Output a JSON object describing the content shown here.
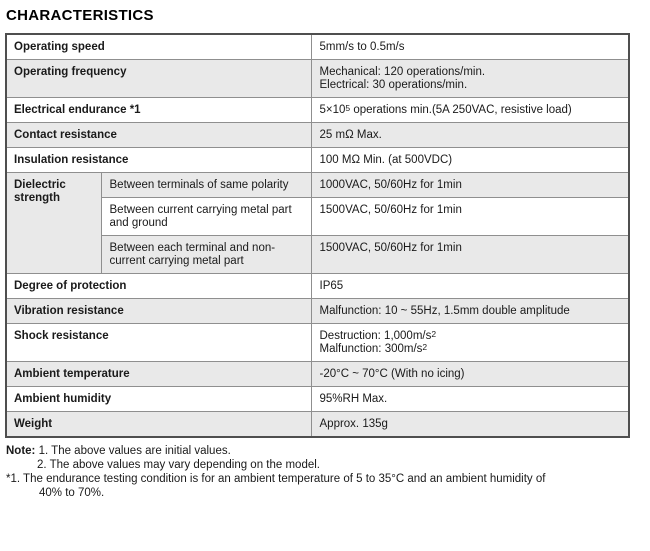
{
  "title": "CHARACTERISTICS",
  "colors": {
    "text": "#1a1a1a",
    "row_shade": "#e9e9e9",
    "border": "#8f8f8f",
    "outer_border": "#4f4f4f"
  },
  "table": {
    "rows": [
      {
        "label": "Operating speed",
        "shaded": false,
        "value": [
          {
            "t": "5mm/s to 0.5m/s"
          }
        ]
      },
      {
        "label": "Operating frequency",
        "shaded": true,
        "value": [
          {
            "t": "Mechanical: 120 operations/min."
          },
          {
            "br": true
          },
          {
            "t": "Electrical: 30 operations/min."
          }
        ]
      },
      {
        "label": "Electrical endurance *1",
        "shaded": false,
        "value": [
          {
            "t": "5×10"
          },
          {
            "sup": "5"
          },
          {
            "t": " operations min.(5A 250VAC, resistive load)"
          }
        ]
      },
      {
        "label": "Contact resistance",
        "shaded": true,
        "value": [
          {
            "t": "25 mΩ Max."
          }
        ]
      },
      {
        "label": "Insulation resistance",
        "shaded": false,
        "value": [
          {
            "t": "100 MΩ Min. (at 500VDC)"
          }
        ]
      },
      {
        "group": "Dielectric strength",
        "group_rowspan": 3,
        "shaded": true,
        "sublabel": "Between terminals of same polarity",
        "value": [
          {
            "t": "1000VAC, 50/60Hz for 1min"
          }
        ]
      },
      {
        "sublabel": "Between current carrying metal part and ground",
        "shaded": false,
        "value": [
          {
            "t": "1500VAC, 50/60Hz for 1min"
          }
        ]
      },
      {
        "sublabel": "Between each terminal and non-current carrying metal part",
        "shaded": true,
        "value": [
          {
            "t": "1500VAC, 50/60Hz for 1min"
          }
        ]
      },
      {
        "label": "Degree of protection",
        "shaded": false,
        "value": [
          {
            "t": "IP65"
          }
        ]
      },
      {
        "label": "Vibration resistance",
        "shaded": true,
        "value": [
          {
            "t": "Malfunction: 10 ~ 55Hz, 1.5mm double amplitude"
          }
        ]
      },
      {
        "label": "Shock resistance",
        "shaded": false,
        "value": [
          {
            "t": "Destruction: 1,000m/s"
          },
          {
            "sup": "2"
          },
          {
            "br": true
          },
          {
            "t": "Malfunction: 300m/s"
          },
          {
            "sup": "2"
          }
        ]
      },
      {
        "label": "Ambient temperature",
        "shaded": true,
        "value": [
          {
            "t": "-20°C ~ 70°C (With no icing)"
          }
        ]
      },
      {
        "label": "Ambient humidity",
        "shaded": false,
        "value": [
          {
            "t": "95%RH Max."
          }
        ]
      },
      {
        "label": "Weight",
        "shaded": true,
        "value": [
          {
            "t": "Approx. 135g"
          }
        ]
      }
    ]
  },
  "notes": {
    "label": "Note:",
    "lines": [
      {
        "with_label": true,
        "indent": 0,
        "text": "1. The above values are initial values."
      },
      {
        "indent": 31,
        "text": "2. The above values may vary depending on the model."
      },
      {
        "indent": 0,
        "text": "*1. The endurance testing condition is for an ambient temperature of 5 to 35°C and an ambient humidity of"
      },
      {
        "indent": 33,
        "text": "40% to 70%."
      }
    ]
  }
}
